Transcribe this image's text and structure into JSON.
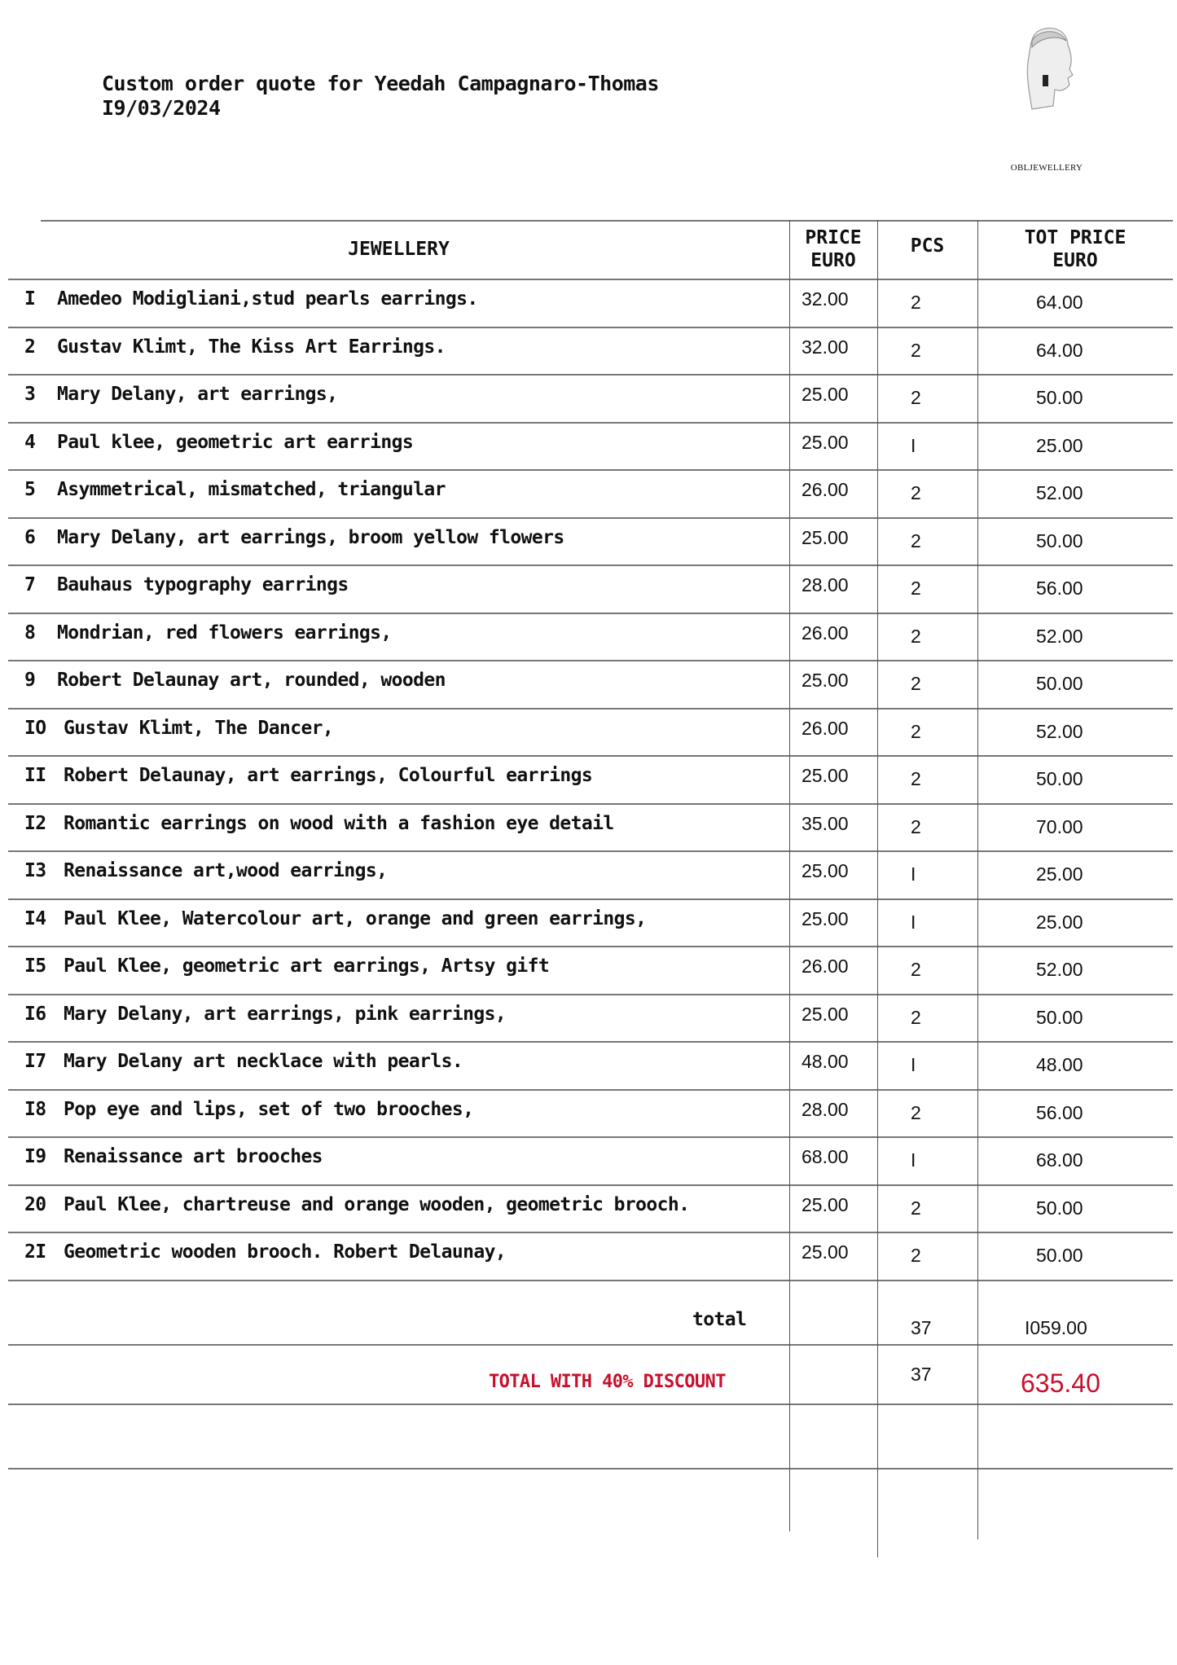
{
  "header": {
    "title": "Custom order quote for Yeedah Campagnaro-Thomas",
    "date": "I9/03/2024"
  },
  "logo": {
    "brand": "OBLJEWELLERY"
  },
  "table": {
    "columns": [
      "JEWELLERY",
      "PRICE EURO",
      "PCS",
      "TOT PRICE EURO"
    ],
    "column_lines": {
      "price": [
        "PRICE",
        "EURO"
      ],
      "tot": [
        "TOT PRICE",
        "EURO"
      ]
    },
    "rows": [
      {
        "n": "I",
        "item": "Amedeo Modigliani,stud pearls earrings.",
        "price": "32.00",
        "pcs": "2",
        "tot": "64.00"
      },
      {
        "n": "2",
        "item": "Gustav Klimt, The Kiss Art Earrings.",
        "price": "32.00",
        "pcs": "2",
        "tot": "64.00"
      },
      {
        "n": "3",
        "item": "Mary Delany, art earrings,",
        "price": "25.00",
        "pcs": "2",
        "tot": "50.00"
      },
      {
        "n": "4",
        "item": "Paul klee, geometric art earrings",
        "price": "25.00",
        "pcs": "I",
        "tot": "25.00"
      },
      {
        "n": "5",
        "item": "Asymmetrical, mismatched, triangular",
        "price": "26.00",
        "pcs": "2",
        "tot": "52.00"
      },
      {
        "n": "6",
        "item": "Mary Delany, art earrings, broom yellow flowers",
        "price": "25.00",
        "pcs": "2",
        "tot": "50.00"
      },
      {
        "n": "7",
        "item": "Bauhaus typography earrings",
        "price": "28.00",
        "pcs": "2",
        "tot": "56.00"
      },
      {
        "n": "8",
        "item": "Mondrian, red flowers earrings,",
        "price": "26.00",
        "pcs": "2",
        "tot": "52.00"
      },
      {
        "n": "9",
        "item": "Robert Delaunay art, rounded, wooden",
        "price": "25.00",
        "pcs": "2",
        "tot": "50.00"
      },
      {
        "n": "IO",
        "item": "Gustav Klimt, The Dancer,",
        "price": "26.00",
        "pcs": "2",
        "tot": "52.00"
      },
      {
        "n": "II",
        "item": "Robert Delaunay, art earrings, Colourful earrings",
        "price": "25.00",
        "pcs": "2",
        "tot": "50.00"
      },
      {
        "n": "I2",
        "item": "Romantic earrings on wood with a fashion eye detail",
        "price": "35.00",
        "pcs": "2",
        "tot": "70.00"
      },
      {
        "n": "I3",
        "item": "Renaissance art,wood earrings,",
        "price": "25.00",
        "pcs": "I",
        "tot": "25.00"
      },
      {
        "n": "I4",
        "item": "Paul Klee, Watercolour art, orange and green earrings,",
        "price": "25.00",
        "pcs": "I",
        "tot": "25.00"
      },
      {
        "n": "I5",
        "item": "Paul Klee, geometric art earrings, Artsy gift",
        "price": "26.00",
        "pcs": "2",
        "tot": "52.00"
      },
      {
        "n": "I6",
        "item": "Mary Delany, art earrings, pink earrings,",
        "price": "25.00",
        "pcs": "2",
        "tot": "50.00"
      },
      {
        "n": "I7",
        "item": "Mary Delany art necklace with pearls.",
        "price": "48.00",
        "pcs": "I",
        "tot": "48.00"
      },
      {
        "n": "I8",
        "item": "Pop eye and lips, set of two brooches,",
        "price": "28.00",
        "pcs": "2",
        "tot": "56.00"
      },
      {
        "n": "I9",
        "item": "Renaissance art brooches",
        "price": "68.00",
        "pcs": "I",
        "tot": "68.00"
      },
      {
        "n": "20",
        "item": "Paul Klee, chartreuse and orange wooden, geometric brooch.",
        "price": "25.00",
        "pcs": "2",
        "tot": "50.00"
      },
      {
        "n": "2I",
        "item": "Geometric wooden brooch. Robert Delaunay,",
        "price": "25.00",
        "pcs": "2",
        "tot": "50.00"
      }
    ],
    "total": {
      "label": "total",
      "pcs": "37",
      "tot": "I059.00"
    },
    "discount": {
      "label": "TOTAL WITH 40% DISCOUNT",
      "pcs": "37",
      "tot": "635.40",
      "color": "#c8102e"
    }
  }
}
